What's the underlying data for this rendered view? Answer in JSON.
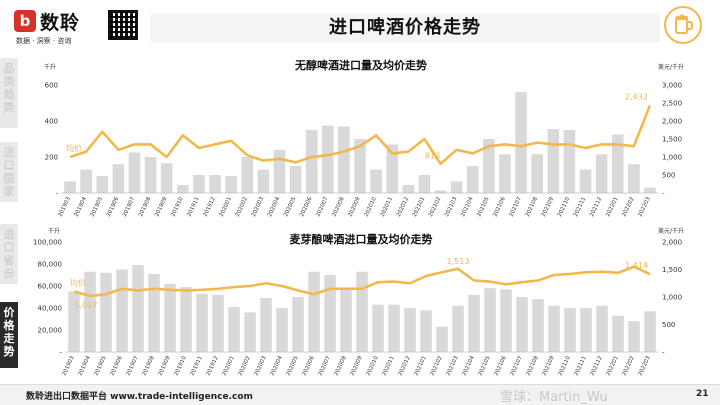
{
  "header": {
    "logo_mark": "b",
    "logo_name": "数聆",
    "logo_tagline": "数据 · 洞察 · 咨询",
    "page_title": "进口啤酒价格走势"
  },
  "side_tabs": [
    {
      "label": "品类趋势",
      "active": false
    },
    {
      "label": "进口国家",
      "active": false
    },
    {
      "label": "进口省份",
      "active": false
    },
    {
      "label": "价格走势",
      "active": true
    }
  ],
  "colors": {
    "bar": "#d9d9d9",
    "line": "#f2b84b",
    "label": "#f2b84b",
    "active_tab": "#2a2a2a"
  },
  "chart_data": [
    {
      "type": "bar",
      "title": "无醇啤酒进口量及均价走势",
      "left_unit": "千升",
      "right_unit": "美元/千升",
      "categories": [
        "201903",
        "201904",
        "201905",
        "201906",
        "201907",
        "201908",
        "201909",
        "201910",
        "201911",
        "201912",
        "202001",
        "202002",
        "202003",
        "202004",
        "202005",
        "202006",
        "202007",
        "202008",
        "202009",
        "202010",
        "202011",
        "202012",
        "202101",
        "202102",
        "202103",
        "202104",
        "202105",
        "202106",
        "202107",
        "202108",
        "202109",
        "202110",
        "202111",
        "202112",
        "202201",
        "202202",
        "202203"
      ],
      "series": [
        {
          "axis": "left",
          "values": [
            65,
            130,
            95,
            160,
            225,
            200,
            165,
            45,
            100,
            100,
            95,
            200,
            130,
            240,
            150,
            350,
            375,
            370,
            300,
            130,
            270,
            45,
            100,
            15,
            65,
            150,
            300,
            215,
            560,
            215,
            355,
            350,
            130,
            215,
            325,
            160,
            30
          ]
        },
        {
          "name": "均价",
          "axis": "right",
          "values": [
            1000,
            1150,
            1700,
            1200,
            1350,
            1350,
            1000,
            1600,
            1250,
            1350,
            1450,
            1050,
            900,
            950,
            850,
            1000,
            1050,
            1150,
            1300,
            1600,
            1100,
            1150,
            1500,
            813,
            1200,
            1100,
            1300,
            1350,
            1300,
            1400,
            1350,
            1350,
            1250,
            1350,
            1350,
            1300,
            2432
          ]
        }
      ],
      "left_ticks": [
        "-",
        "200",
        "400",
        "600"
      ],
      "right_ticks": [
        "-",
        "500",
        "1,000",
        "1,500",
        "2,000",
        "2,500",
        "3,000"
      ],
      "left_ylim": [
        0,
        600
      ],
      "right_ylim": [
        0,
        3000
      ],
      "labels": [
        {
          "text": "均价",
          "index": 0
        },
        {
          "text": "813",
          "index": 23
        },
        {
          "text": "2,432",
          "index": 36
        }
      ]
    },
    {
      "type": "bar",
      "title": "麦芽酿啤酒进口量及均价走势",
      "left_unit": "千升",
      "right_unit": "美元/千升",
      "categories": [
        "201903",
        "201904",
        "201905",
        "201906",
        "201907",
        "201908",
        "201909",
        "201910",
        "201911",
        "201912",
        "202001",
        "202002",
        "202003",
        "202004",
        "202005",
        "202006",
        "202007",
        "202008",
        "202009",
        "202010",
        "202011",
        "202012",
        "202101",
        "202102",
        "202103",
        "202104",
        "202105",
        "202106",
        "202107",
        "202108",
        "202109",
        "202110",
        "202111",
        "202112",
        "202201",
        "202202",
        "202203"
      ],
      "series": [
        {
          "axis": "left",
          "values": [
            55000,
            73000,
            72000,
            75000,
            79000,
            71000,
            62000,
            59000,
            53000,
            52000,
            41000,
            36000,
            49000,
            40000,
            50000,
            73000,
            70000,
            58000,
            73000,
            43000,
            43000,
            40000,
            38000,
            23000,
            42000,
            52000,
            58000,
            57000,
            50000,
            48000,
            42000,
            40000,
            40000,
            42000,
            33000,
            28000,
            37000
          ]
        },
        {
          "name": "均价",
          "axis": "right",
          "values": [
            1100,
            1017,
            1050,
            1150,
            1120,
            1150,
            1130,
            1120,
            1130,
            1150,
            1180,
            1200,
            1250,
            1200,
            1120,
            1050,
            1150,
            1150,
            1150,
            1270,
            1280,
            1250,
            1380,
            1450,
            1513,
            1300,
            1280,
            1230,
            1270,
            1300,
            1400,
            1420,
            1450,
            1460,
            1440,
            1550,
            1414
          ]
        }
      ],
      "left_ticks": [
        "-",
        "20,000",
        "40,000",
        "60,000",
        "80,000",
        "100,000"
      ],
      "right_ticks": [
        "-",
        "500",
        "1,000",
        "1,500",
        "2,000"
      ],
      "left_ylim": [
        0,
        100000
      ],
      "right_ylim": [
        0,
        2000
      ],
      "labels": [
        {
          "text": "均价",
          "index": 0
        },
        {
          "text": "1,017",
          "index": 1
        },
        {
          "text": "1,513",
          "index": 24
        },
        {
          "text": "1,414",
          "index": 36
        }
      ]
    }
  ],
  "footer": {
    "text": "数聆进出口数据平台 www.trade-intelligence.com",
    "watermark": "雪球：Martin_Wu",
    "page_number": "21"
  }
}
